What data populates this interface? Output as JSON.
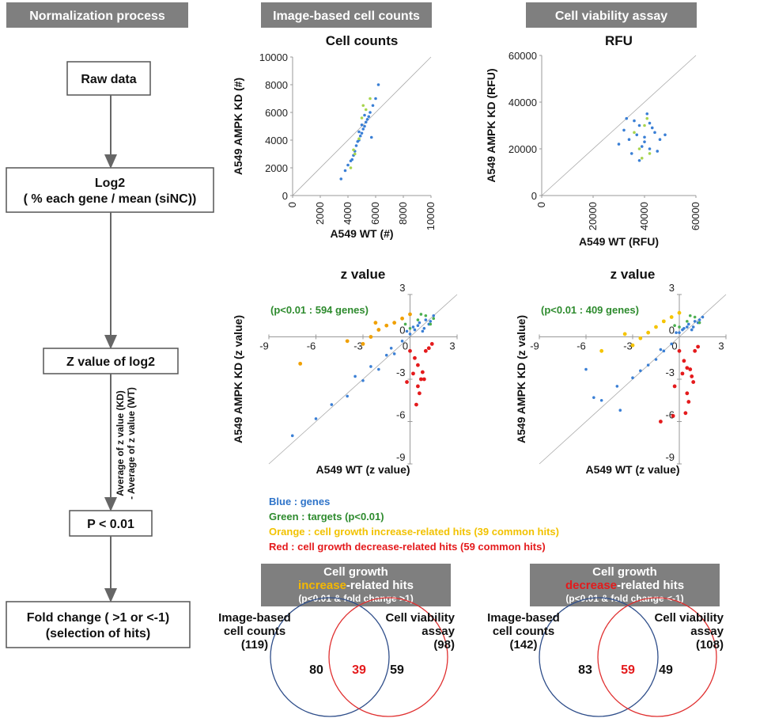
{
  "headers": [
    "Normalization process",
    "Image-based cell counts",
    "Cell viability assay"
  ],
  "flowchart": {
    "steps": [
      [
        "Raw data"
      ],
      [
        "Log2",
        "( % each gene / mean (siNC))"
      ],
      [
        "Z value of log2"
      ],
      [
        "P < 0.01"
      ],
      [
        "Fold change ( >1  or <-1)",
        "(selection of hits)"
      ]
    ],
    "arrow_label": [
      "Average of z value (KD)",
      "- Average of z value (WT)"
    ]
  },
  "chart_data": [
    {
      "type": "scatter",
      "title": "Cell counts",
      "xlabel": "A549 WT (#)",
      "ylabel": "A549 AMPK KD (#)",
      "xlim": [
        0,
        10000
      ],
      "ylim": [
        0,
        10000
      ],
      "xticks": [
        0,
        2000,
        4000,
        6000,
        8000,
        10000
      ],
      "yticks": [
        0,
        2000,
        4000,
        6000,
        8000,
        10000
      ],
      "series": [
        {
          "color": "#3a7fd5",
          "x": [
            4200,
            4500,
            4800,
            5000,
            5200,
            5400,
            5600,
            4600,
            4900,
            5100,
            5300,
            4400,
            4700,
            5500,
            5800,
            3800,
            4000,
            6000,
            5000,
            4300,
            4800,
            5200,
            5700,
            3500,
            6200
          ],
          "values": [
            2500,
            3200,
            4000,
            4500,
            5000,
            5500,
            6000,
            3600,
            4300,
            4800,
            5300,
            2900,
            3900,
            5700,
            6500,
            1800,
            2200,
            7000,
            5100,
            2600,
            4600,
            5800,
            4200,
            1200,
            8000
          ]
        },
        {
          "color": "#a8d44e",
          "x": [
            4500,
            5000,
            5300,
            4800,
            5600,
            4200,
            5100,
            4400
          ],
          "values": [
            3000,
            5600,
            6200,
            4100,
            7000,
            2000,
            6500,
            3300
          ]
        }
      ]
    },
    {
      "type": "scatter",
      "title": "RFU",
      "xlabel": "A549 WT (RFU)",
      "ylabel": "A549 AMPK KD (RFU)",
      "xlim": [
        0,
        60000
      ],
      "ylim": [
        0,
        60000
      ],
      "xticks": [
        0,
        20000,
        40000,
        60000
      ],
      "yticks": [
        0,
        20000,
        40000,
        60000
      ],
      "series": [
        {
          "color": "#3a7fd5",
          "x": [
            30000,
            32000,
            35000,
            37000,
            38000,
            40000,
            42000,
            44000,
            46000,
            36000,
            39000,
            41000,
            43000,
            34000,
            45000,
            48000,
            33000,
            40000,
            38000,
            42000
          ],
          "values": [
            22000,
            28000,
            18000,
            26000,
            30000,
            25000,
            20000,
            27000,
            24000,
            32000,
            21000,
            35000,
            29000,
            24000,
            19000,
            26000,
            33000,
            23000,
            15000,
            31000
          ]
        },
        {
          "color": "#a8d44e",
          "x": [
            36000,
            38000,
            40000,
            42000,
            39000,
            41000
          ],
          "values": [
            27000,
            20000,
            30000,
            18000,
            16000,
            33000
          ]
        }
      ]
    },
    {
      "type": "scatter",
      "title": "z value",
      "xlabel": "A549 WT (z value)",
      "ylabel": "A549 AMPK KD (z value)",
      "annotation": "(p<0.01 : 594 genes)",
      "annotation_color": "#2e8b2e",
      "xlim": [
        -9,
        3
      ],
      "ylim": [
        -9,
        3
      ],
      "xticks": [
        -9,
        -6,
        -3,
        0,
        3
      ],
      "yticks": [
        -9,
        -6,
        -3,
        0,
        3
      ],
      "axes_at_origin": true,
      "series": [
        {
          "color": "#3a7fd5",
          "x": [
            -1,
            -0.5,
            0,
            0.3,
            0.5,
            0.8,
            1,
            1.2,
            1.5,
            -2,
            -2.5,
            -3,
            -4,
            -5,
            -6,
            -7.5,
            0.2,
            0.6,
            -1.5,
            -0.2,
            0.9,
            1.3,
            -1.2,
            -3.5
          ],
          "values": [
            -1.2,
            -0.3,
            0.2,
            0.5,
            0.8,
            0.4,
            1.2,
            0.9,
            1.5,
            -2.3,
            -2.1,
            -3.1,
            -4.2,
            -4.8,
            -5.8,
            -7,
            0.7,
            1,
            -1.3,
            0.4,
            0.6,
            1.1,
            -0.8,
            -2.8
          ]
        },
        {
          "color": "#4caf50",
          "x": [
            0,
            0.5,
            1,
            1.3,
            -0.3,
            0.7,
            1.5
          ],
          "values": [
            0.6,
            1.2,
            1.5,
            0.9,
            0.9,
            1.6,
            1.3
          ]
        },
        {
          "color": "#f0a000",
          "x": [
            -1,
            -0.5,
            -2,
            -2.5,
            -3,
            -4,
            -7,
            -1.5,
            0,
            -2.2
          ],
          "values": [
            1,
            1.3,
            0.5,
            0,
            -0.5,
            -0.3,
            -1.9,
            0.8,
            1.6,
            1
          ]
        },
        {
          "color": "#e41a1c",
          "x": [
            0,
            0.3,
            0.5,
            0.8,
            1,
            1.2,
            -0.2,
            0.5,
            0.6,
            0.4,
            0.9,
            0.2,
            1.4,
            0.7
          ],
          "values": [
            -1,
            -1.5,
            -2,
            -2.5,
            -1,
            -0.8,
            -3.2,
            -3.5,
            -4,
            -4.8,
            -3,
            -2.6,
            -0.5,
            -3
          ]
        }
      ]
    },
    {
      "type": "scatter",
      "title": "z value",
      "xlabel": "A549 WT (z value)",
      "ylabel": "A549 AMPK KD (z value)",
      "annotation": "(p<0.01 : 409 genes)",
      "annotation_color": "#2e8b2e",
      "xlim": [
        -9,
        3
      ],
      "ylim": [
        -9,
        3
      ],
      "xticks": [
        -9,
        -6,
        -3,
        0,
        3
      ],
      "yticks": [
        -9,
        -6,
        -3,
        0,
        3
      ],
      "axes_at_origin": true,
      "series": [
        {
          "color": "#3a7fd5",
          "x": [
            -1,
            -0.5,
            0,
            0.3,
            0.5,
            0.8,
            1,
            1.2,
            1.5,
            -2,
            -2.5,
            -3,
            -4,
            -5,
            -6,
            -3.8,
            0.2,
            0.6,
            -1.5,
            -0.2,
            0.9,
            1.3,
            -1.2,
            -5.5
          ],
          "values": [
            -1,
            -0.5,
            0.3,
            0.6,
            0.7,
            0.5,
            1.1,
            1,
            1.4,
            -2,
            -2.4,
            -2.9,
            -3.5,
            -4.5,
            -2.3,
            -5.2,
            0.5,
            0.9,
            -1.6,
            0.3,
            0.7,
            1.2,
            -0.9,
            -4.3
          ]
        },
        {
          "color": "#4caf50",
          "x": [
            0,
            0.5,
            1,
            1.3,
            -0.3,
            0.7
          ],
          "values": [
            0.7,
            1.1,
            1.4,
            1,
            0.8,
            1.5
          ]
        },
        {
          "color": "#f5c400",
          "x": [
            -1,
            -0.5,
            -2,
            -2.5,
            -3,
            -5,
            -1.5,
            0,
            -3.5
          ],
          "values": [
            1.1,
            1.4,
            0.3,
            -0.1,
            -0.6,
            -1,
            0.7,
            1.7,
            0.2
          ]
        },
        {
          "color": "#e41a1c",
          "x": [
            0,
            0.3,
            0.5,
            0.8,
            1,
            1.2,
            -0.3,
            0.5,
            0.6,
            0.4,
            0.9,
            0.2,
            -0.4,
            0.7,
            -1.2
          ],
          "values": [
            -1,
            -1.7,
            -2.2,
            -2.8,
            -1,
            -0.7,
            -3.5,
            -4,
            -4.6,
            -5.4,
            -3.2,
            -2.6,
            -5.6,
            -2.3,
            -6
          ]
        }
      ]
    }
  ],
  "legend": [
    {
      "text": "Blue : genes",
      "color": "#2f74c9"
    },
    {
      "text": "Green : targets (p<0.01)",
      "color": "#2e8b2e"
    },
    {
      "text": "Orange : cell growth increase-related hits (39 common hits)",
      "color": "#f2c200"
    },
    {
      "text": "Red : cell growth decrease-related hits (59 common hits)",
      "color": "#e41a1c"
    }
  ],
  "venn": [
    {
      "title": "Cell growth",
      "highlight": "increase",
      "highlight_color": "#f5b800",
      "title_rest": "-related hits",
      "condition": "(p<0.01 & fold change >1)",
      "left_label": [
        "Image-based",
        "cell counts"
      ],
      "left_total": "(119)",
      "right_label": [
        "Cell viability",
        "assay"
      ],
      "right_total": "(98)",
      "left_only": 80,
      "both": 39,
      "right_only": 59
    },
    {
      "title": "Cell growth",
      "highlight": "decrease",
      "highlight_color": "#e41a1c",
      "title_rest": "-related hits",
      "condition": "(p<0.01 & fold change <-1)",
      "left_label": [
        "Image-based",
        "cell counts"
      ],
      "left_total": "(142)",
      "right_label": [
        "Cell viability",
        "assay"
      ],
      "right_total": "(108)",
      "left_only": 83,
      "both": 59,
      "right_only": 49
    }
  ]
}
